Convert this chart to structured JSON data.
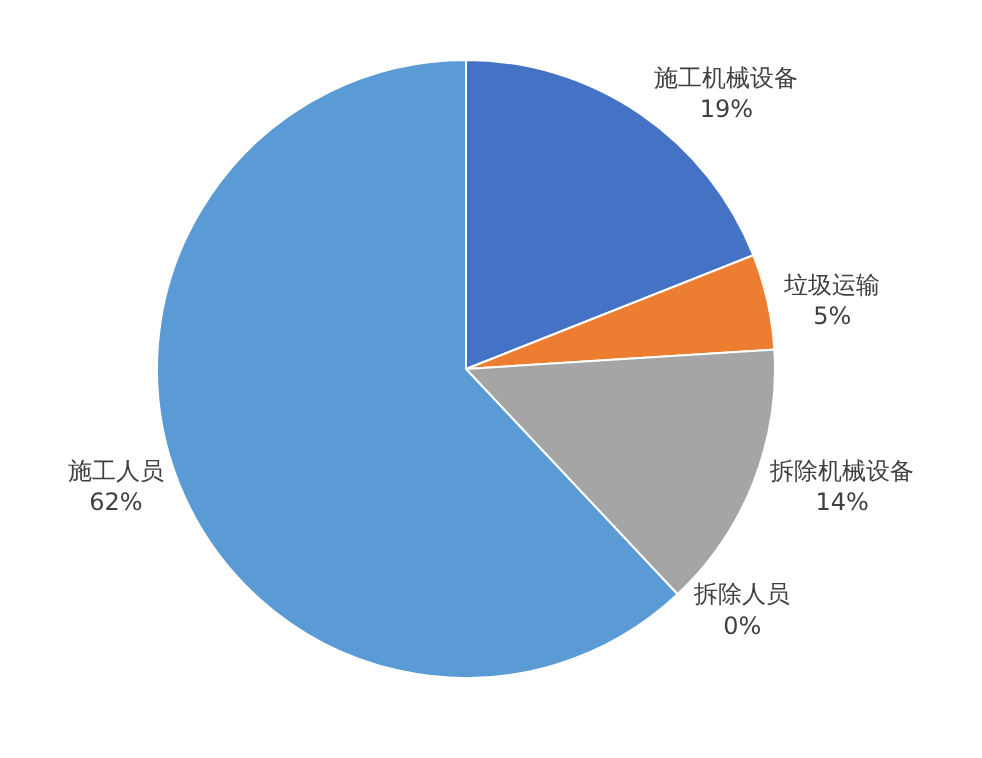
{
  "chart_data": {
    "type": "pie",
    "categories": [
      "施工机械设备",
      "垃圾运输",
      "拆除机械设备",
      "拆除人员",
      "施工人员"
    ],
    "values": [
      19,
      5,
      14,
      0,
      62
    ],
    "colors": [
      "#4472c4",
      "#ed7d31",
      "#a5a5a5",
      "#ffc000",
      "#5b9bd5"
    ],
    "value_labels": [
      "19%",
      "5%",
      "14%",
      "0%",
      "62%"
    ],
    "legend": false
  }
}
